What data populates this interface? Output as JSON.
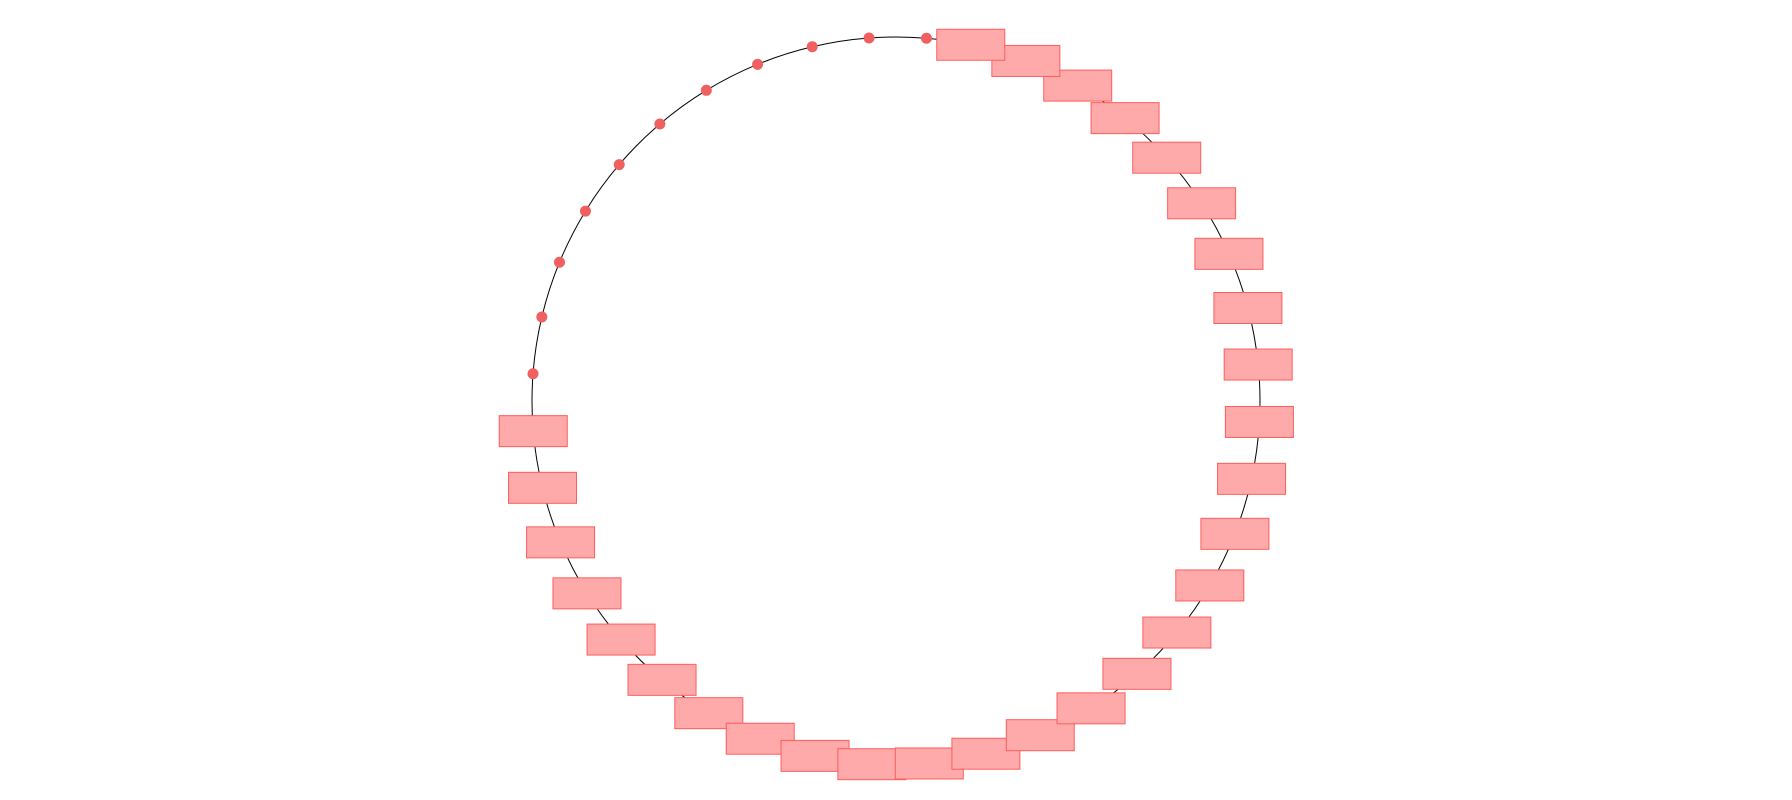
{
  "diagram": {
    "type": "cycle-graph",
    "node_count": 40,
    "edge_color": "#000000",
    "node_fill": "#ffaaaa",
    "node_stroke": "#ff5c5c",
    "dot_fill": "#f06060",
    "nodes": [
      {
        "shape": "dot"
      },
      {
        "shape": "dot"
      },
      {
        "shape": "dot"
      },
      {
        "shape": "dot"
      },
      {
        "shape": "dot"
      },
      {
        "shape": "dot"
      },
      {
        "shape": "dot"
      },
      {
        "shape": "dot"
      },
      {
        "shape": "dot"
      },
      {
        "shape": "dot"
      },
      {
        "shape": "dot"
      },
      {
        "shape": "box"
      },
      {
        "shape": "box"
      },
      {
        "shape": "box"
      },
      {
        "shape": "box"
      },
      {
        "shape": "box"
      },
      {
        "shape": "box"
      },
      {
        "shape": "box"
      },
      {
        "shape": "box"
      },
      {
        "shape": "box"
      },
      {
        "shape": "box"
      },
      {
        "shape": "box"
      },
      {
        "shape": "box"
      },
      {
        "shape": "box"
      },
      {
        "shape": "box"
      },
      {
        "shape": "box"
      },
      {
        "shape": "box"
      },
      {
        "shape": "box"
      },
      {
        "shape": "box"
      },
      {
        "shape": "box"
      },
      {
        "shape": "box"
      },
      {
        "shape": "box"
      },
      {
        "shape": "box"
      },
      {
        "shape": "box"
      },
      {
        "shape": "box"
      },
      {
        "shape": "box"
      },
      {
        "shape": "box"
      },
      {
        "shape": "box"
      },
      {
        "shape": "box"
      },
      {
        "shape": "box"
      }
    ]
  }
}
